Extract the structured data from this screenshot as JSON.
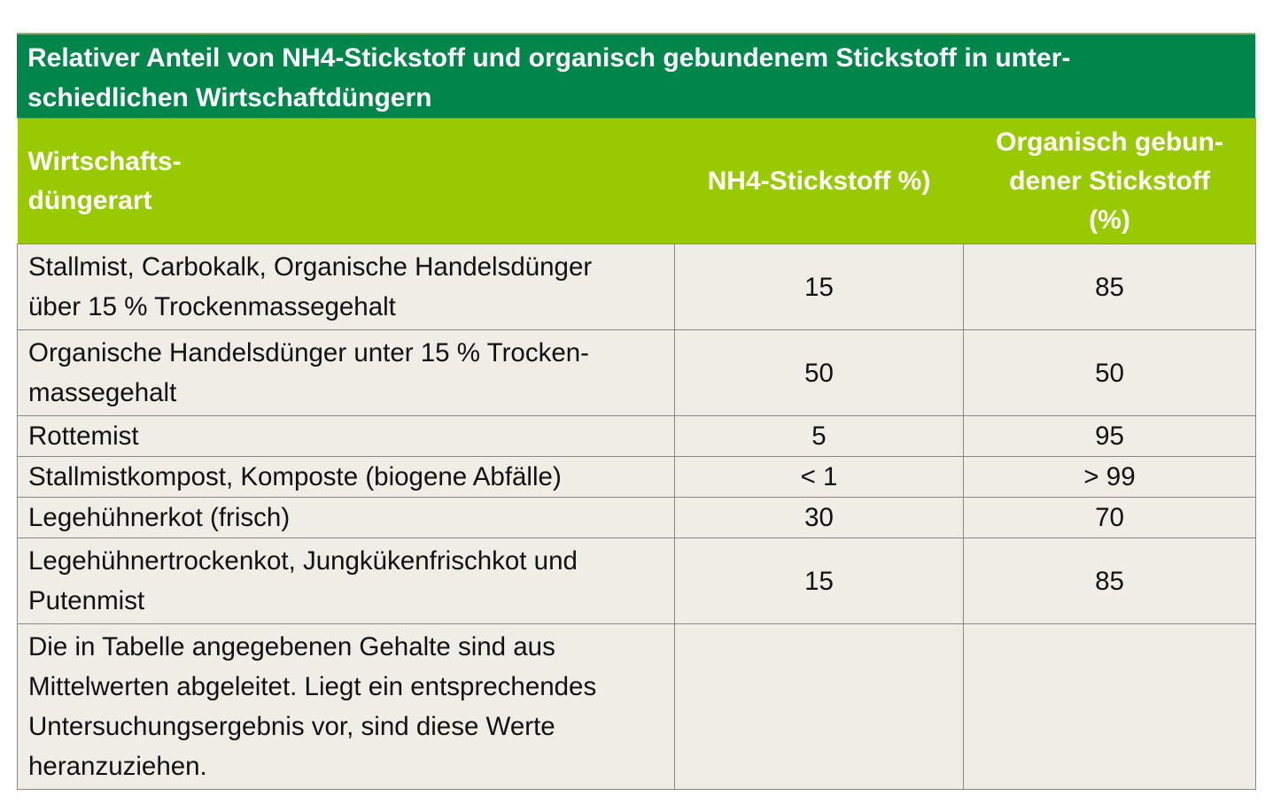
{
  "title": "Relativer Anteil von NH4-Stickstoff und organisch gebundenem Stickstoff in unter-\nschiedlichen Wirtschaftdüngern",
  "colors": {
    "title_bg": "#00854a",
    "header_bg": "#99c900",
    "cell_bg": "#efede6"
  },
  "headers": [
    "Wirtschafts-\ndüngerart",
    "NH4-Stickstoff %)",
    "Organisch gebun-\ndener Stickstoff\n(%)"
  ],
  "rows": [
    {
      "type": "Stallmist, Carbokalk, Organische Handelsdünger\nüber 15 % Trockenmassegehalt",
      "nh4": "15",
      "org": "85"
    },
    {
      "type": "Organische Handelsdünger unter 15 % Trocken-\nmassegehalt",
      "nh4": "50",
      "org": "50"
    },
    {
      "type": "Rottemist",
      "nh4": "5",
      "org": "95"
    },
    {
      "type": "Stallmistkompost, Komposte (biogene Abfälle)",
      "nh4": "< 1",
      "org": "> 99"
    },
    {
      "type": "Legehühnerkot (frisch)",
      "nh4": "30",
      "org": "70"
    },
    {
      "type": "Legehühnertrockenkot, Jungkükenfrischkot und\nPutenmist",
      "nh4": "15",
      "org": "85"
    },
    {
      "type": "Die in Tabelle angegebenen Gehalte sind aus\nMittelwerten abgeleitet. Liegt ein entsprechendes\nUntersuchungsergebnis vor, sind diese Werte\nheranzuziehen.",
      "nh4": "",
      "org": ""
    }
  ]
}
